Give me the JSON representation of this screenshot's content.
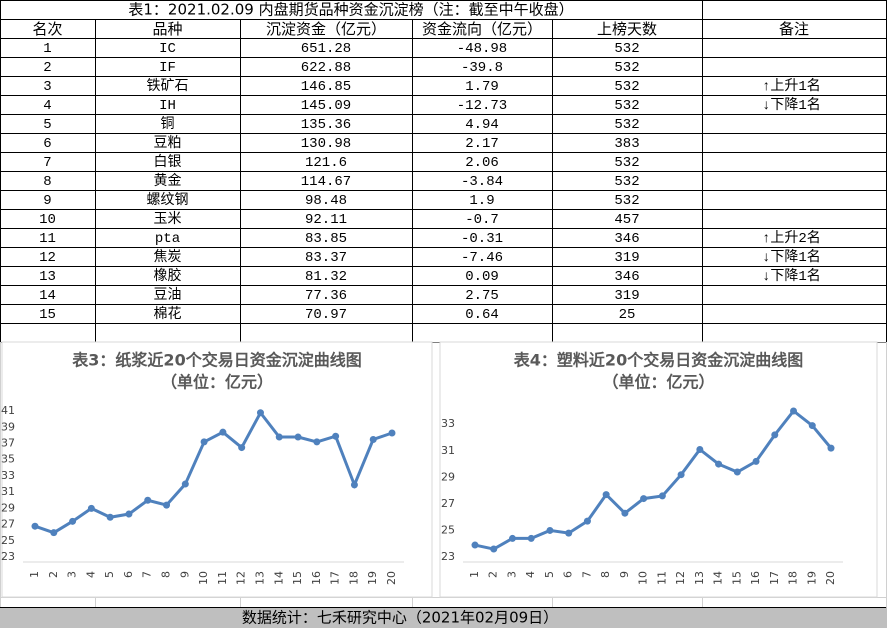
{
  "table": {
    "title": "表1：2021.02.09 内盘期货品种资金沉淀榜（注：截至中午收盘）",
    "header": [
      "名次",
      "品种",
      "沉淀资金（亿元）",
      "资金流向（亿元）",
      "上榜天数",
      "备注"
    ],
    "rows": [
      [
        1,
        "IC",
        651.28,
        -48.98,
        532
      ],
      [
        2,
        "IF",
        622.88,
        -39.8,
        532
      ],
      [
        3,
        "铁矿石",
        146.85,
        1.79,
        532,
        "↑上升1名"
      ],
      [
        4,
        "IH",
        145.09,
        -12.73,
        532,
        "↓下降1名"
      ],
      [
        5,
        "铜",
        135.36,
        4.94,
        532
      ],
      [
        6,
        "豆粕",
        130.98,
        2.17,
        383
      ],
      [
        7,
        "白银",
        121.6,
        2.06,
        532
      ],
      [
        8,
        "黄金",
        114.67,
        -3.84,
        532
      ],
      [
        9,
        "螺纹钢",
        98.48,
        1.9,
        532
      ],
      [
        10,
        "玉米",
        92.11,
        -0.7,
        457
      ],
      [
        11,
        "pta",
        83.85,
        -0.31,
        346,
        "↑上升2名"
      ],
      [
        12,
        "焦炭",
        83.37,
        -7.46,
        319,
        "↓下降1名"
      ],
      [
        13,
        "橡胶",
        81.32,
        0.09,
        346,
        "↓下降1名"
      ],
      [
        14,
        "豆油",
        77.36,
        2.75,
        319
      ],
      [
        15,
        "棉花",
        70.97,
        0.64,
        25
      ]
    ]
  },
  "chart_data": [
    {
      "type": "line",
      "title": "表3：纸浆近20个交易日资金沉淀曲线图",
      "subtitle": "（单位：亿元）",
      "categories": [
        "1",
        "2",
        "3",
        "4",
        "5",
        "6",
        "7",
        "8",
        "9",
        "10",
        "11",
        "12",
        "13",
        "14",
        "15",
        "16",
        "17",
        "18",
        "19",
        "20"
      ],
      "series": [
        {
          "name": "纸浆",
          "color": "#4f81bd",
          "values": [
            26.8,
            26.0,
            27.4,
            29.0,
            27.9,
            28.3,
            30.0,
            29.4,
            32.0,
            37.2,
            38.4,
            36.5,
            40.8,
            37.8,
            37.8,
            37.2,
            37.9,
            31.9,
            37.5,
            38.3
          ]
        }
      ],
      "ylim": [
        23,
        42
      ],
      "yticks": [
        23,
        25,
        27,
        29,
        31,
        33,
        35,
        37,
        39,
        41
      ],
      "grid": false
    },
    {
      "type": "line",
      "title": "表4：塑料近20个交易日资金沉淀曲线图",
      "subtitle": "（单位：亿元）",
      "categories": [
        "1",
        "2",
        "3",
        "4",
        "5",
        "6",
        "7",
        "8",
        "9",
        "10",
        "11",
        "12",
        "13",
        "14",
        "15",
        "16",
        "17",
        "18",
        "19",
        "20"
      ],
      "series": [
        {
          "name": "塑料",
          "color": "#4f81bd",
          "values": [
            23.9,
            23.6,
            24.4,
            24.4,
            25.0,
            24.8,
            25.7,
            27.7,
            26.3,
            27.4,
            27.6,
            29.2,
            31.1,
            30.0,
            29.4,
            30.2,
            32.2,
            34.0,
            32.9,
            31.2
          ]
        }
      ],
      "ylim": [
        23,
        34.6
      ],
      "yticks": [
        23,
        25,
        27,
        29,
        31,
        33
      ],
      "grid": false
    }
  ],
  "footer": "数据统计：七禾研究中心（2021年02月09日）"
}
